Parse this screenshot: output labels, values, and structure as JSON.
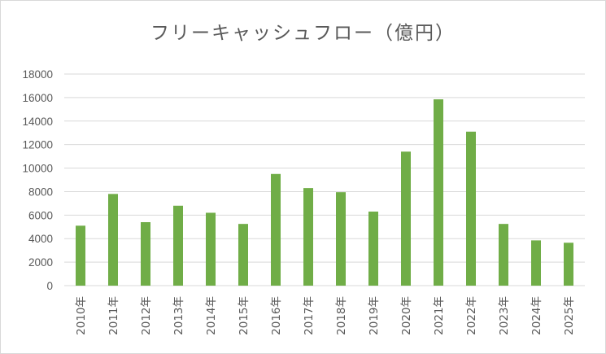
{
  "chart_data": {
    "type": "bar",
    "title": "フリーキャッシュフロー（億円）",
    "xlabel": "",
    "ylabel": "",
    "categories": [
      "2010年",
      "2011年",
      "2012年",
      "2013年",
      "2014年",
      "2015年",
      "2016年",
      "2017年",
      "2018年",
      "2019年",
      "2020年",
      "2021年",
      "2022年",
      "2023年",
      "2024年",
      "2025年"
    ],
    "values": [
      5100,
      7800,
      5400,
      6800,
      6200,
      5250,
      9500,
      8300,
      7950,
      6300,
      11400,
      15850,
      13100,
      5250,
      3850,
      3650
    ],
    "ylim": [
      0,
      18000
    ],
    "yticks": [
      "0",
      "2000",
      "4000",
      "6000",
      "8000",
      "10000",
      "12000",
      "14000",
      "16000",
      "18000"
    ],
    "grid": true,
    "legend": "none",
    "bar_color": "#70ad47",
    "grid_color": "#d9d9d9",
    "text_color": "#595959"
  }
}
